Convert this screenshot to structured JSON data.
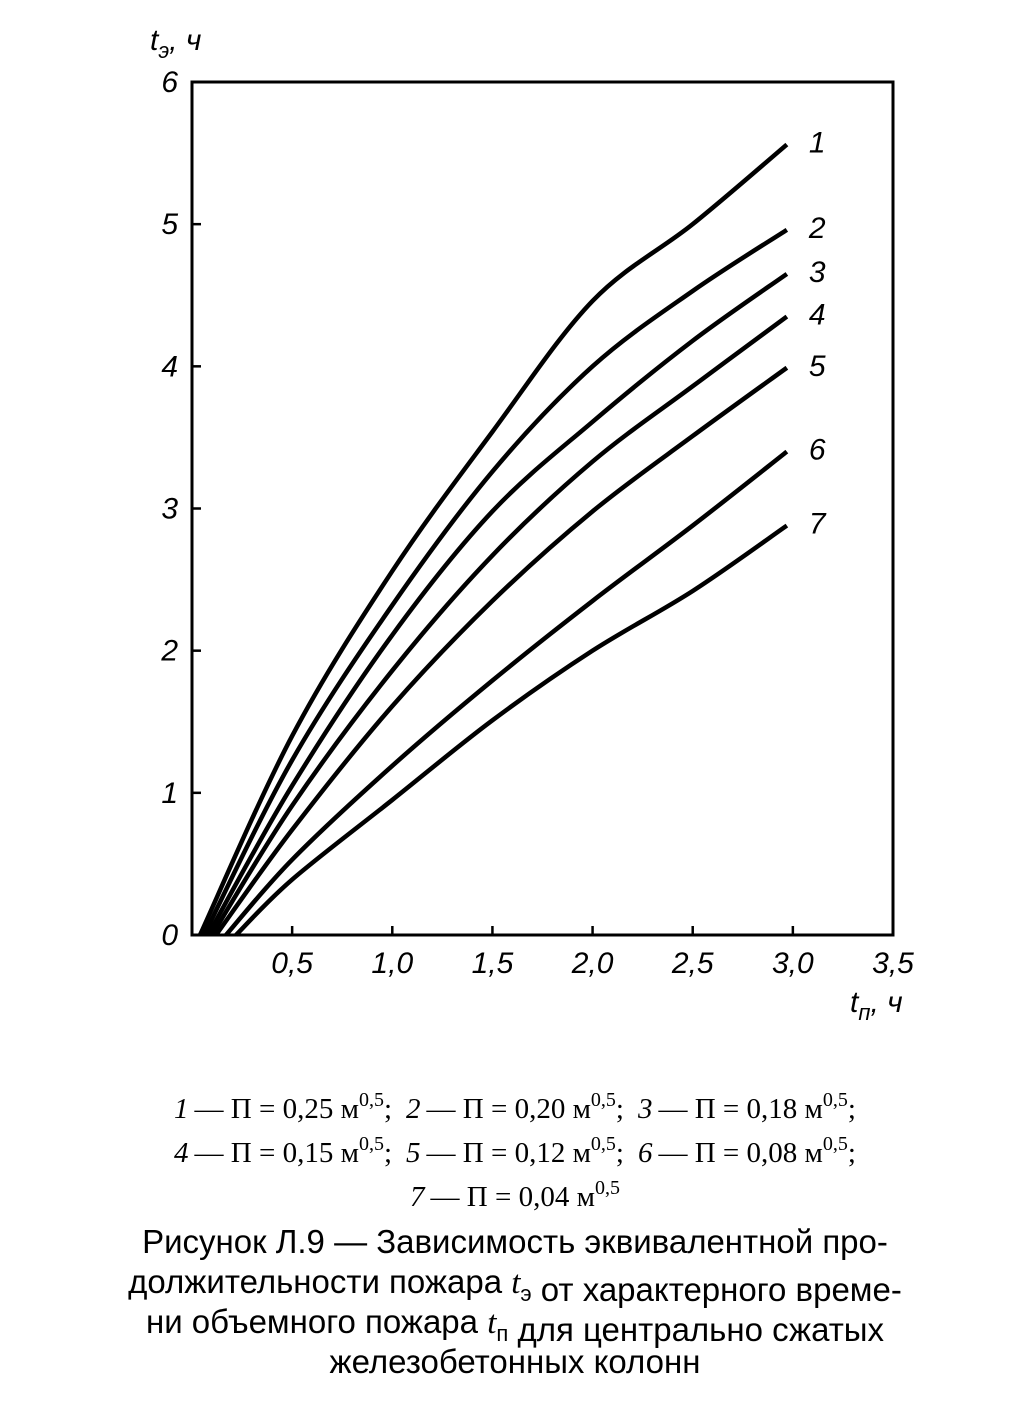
{
  "chart_data": {
    "type": "line",
    "y_label": {
      "text": "t",
      "sub": "э",
      "unit": ", ч"
    },
    "x_label": {
      "text": "t",
      "sub": "п",
      "unit": ", ч"
    },
    "xlim": [
      0,
      3.5
    ],
    "ylim": [
      0,
      6
    ],
    "xticks": [
      {
        "value": 0.5,
        "label": "0,5"
      },
      {
        "value": 1.0,
        "label": "1,0"
      },
      {
        "value": 1.5,
        "label": "1,5"
      },
      {
        "value": 2.0,
        "label": "2,0"
      },
      {
        "value": 2.5,
        "label": "2,5"
      },
      {
        "value": 3.0,
        "label": "3,0"
      },
      {
        "value": 3.5,
        "label": "3,5"
      }
    ],
    "yticks": [
      0,
      1,
      2,
      3,
      4,
      5,
      6
    ],
    "color": "#000000",
    "series": [
      {
        "name": "1",
        "legend": "— П = 0,25 м",
        "exp": "0,5",
        "sep": ";",
        "x": [
          0.04,
          0.5,
          1.0,
          1.5,
          2.0,
          2.5,
          2.97
        ],
        "values": [
          0,
          1.4,
          2.56,
          3.54,
          4.46,
          5.0,
          5.56
        ]
      },
      {
        "name": "2",
        "legend": "— П = 0,20 м",
        "exp": "0,5",
        "sep": ";",
        "x": [
          0.06,
          0.5,
          1.0,
          1.5,
          2.0,
          2.5,
          2.97
        ],
        "values": [
          0,
          1.23,
          2.32,
          3.26,
          4.0,
          4.53,
          4.96
        ]
      },
      {
        "name": "3",
        "legend": "— П = 0,18 м",
        "exp": "0,5",
        "sep": ";",
        "x": [
          0.08,
          0.5,
          1.0,
          1.5,
          2.0,
          2.5,
          2.97
        ],
        "values": [
          0,
          1.05,
          2.11,
          2.98,
          3.61,
          4.18,
          4.65
        ]
      },
      {
        "name": "4",
        "legend": "— П = 0,15 м",
        "exp": "0,5",
        "sep": ";",
        "x": [
          0.1,
          0.5,
          1.0,
          1.5,
          2.0,
          2.5,
          2.97
        ],
        "values": [
          0,
          0.91,
          1.86,
          2.67,
          3.33,
          3.86,
          4.35
        ]
      },
      {
        "name": "5",
        "legend": "— П = 0,12 м",
        "exp": "0,5",
        "sep": ";",
        "x": [
          0.12,
          0.5,
          1.0,
          1.5,
          2.0,
          2.5,
          2.97
        ],
        "values": [
          0,
          0.74,
          1.61,
          2.35,
          2.98,
          3.51,
          3.99
        ]
      },
      {
        "name": "6",
        "legend": "— П = 0,08 м",
        "exp": "0,5",
        "sep": ";",
        "x": [
          0.17,
          0.5,
          1.0,
          1.5,
          2.0,
          2.5,
          2.97
        ],
        "values": [
          0,
          0.53,
          1.19,
          1.79,
          2.35,
          2.88,
          3.4
        ]
      },
      {
        "name": "7",
        "legend": "— П = 0,04 м",
        "exp": "0,5",
        "x": [
          0.22,
          0.5,
          1.0,
          1.5,
          2.0,
          2.5,
          2.97
        ],
        "values": [
          0,
          0.39,
          0.95,
          1.51,
          2.0,
          2.42,
          2.88
        ]
      }
    ],
    "caption": [
      [
        {
          "text": "Рисунок  Л.9 — Зависимость эквивалентной про-"
        }
      ],
      [
        {
          "text": "должительности пожара "
        },
        {
          "text": "t",
          "sub": "э"
        },
        {
          "text": " от характерного време-"
        }
      ],
      [
        {
          "text": "ни объемного пожара  "
        },
        {
          "text": "t",
          "sub": "п"
        },
        {
          "text": "  для центрально сжатых"
        }
      ],
      [
        {
          "text": "железобетонных колонн"
        }
      ]
    ]
  }
}
